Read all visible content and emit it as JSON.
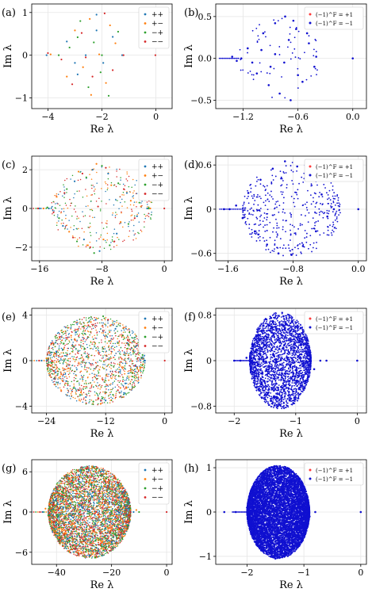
{
  "panels": [
    {
      "id": "a",
      "label": "(a)",
      "xlabel": "Re λ",
      "ylabel": "Im λ",
      "xlim": [
        -4.6,
        0.6
      ],
      "ylim": [
        -1.25,
        1.2
      ],
      "xticks": [
        -4,
        -2,
        0
      ],
      "xtick_labels": [
        "−4",
        "−2",
        "0"
      ],
      "yticks": [
        -1,
        0,
        1
      ],
      "ytick_labels": [
        "−1",
        "0",
        "1"
      ],
      "legend": {
        "type": "sign2",
        "entries": [
          "++",
          "+−",
          "−+",
          "−−"
        ]
      }
    },
    {
      "id": "b",
      "label": "(b)",
      "xlabel": "Re λ",
      "ylabel": "Im λ",
      "xlim": [
        -1.5,
        0.15
      ],
      "ylim": [
        -0.6,
        0.65
      ],
      "xticks": [
        -1.2,
        -0.6,
        0.0
      ],
      "xtick_labels": [
        "−1.2",
        "−0.6",
        "0.0"
      ],
      "yticks": [
        -0.5,
        0,
        0.5
      ],
      "ytick_labels": [
        "−0.5",
        "0.0",
        "0.5"
      ],
      "legend": {
        "type": "parity",
        "entries": [
          "(−1)^F = +1",
          "(−1)^F = −1"
        ]
      }
    },
    {
      "id": "c",
      "label": "(c)",
      "xlabel": "Re λ",
      "ylabel": "Im λ",
      "xlim": [
        -17,
        1
      ],
      "ylim": [
        -2.7,
        2.7
      ],
      "xticks": [
        -16,
        -8,
        0
      ],
      "xtick_labels": [
        "−16",
        "−8",
        "0"
      ],
      "yticks": [
        -2,
        0,
        2
      ],
      "ytick_labels": [
        "−2",
        "0",
        "2"
      ],
      "legend": {
        "type": "sign2",
        "entries": [
          "++",
          "+−",
          "−+",
          "−−"
        ]
      }
    },
    {
      "id": "d",
      "label": "(d)",
      "xlabel": "Re λ",
      "ylabel": "Im λ",
      "xlim": [
        -1.75,
        0.1
      ],
      "ylim": [
        -0.7,
        0.72
      ],
      "xticks": [
        -1.6,
        -0.8,
        0.0
      ],
      "xtick_labels": [
        "−1.6",
        "−0.8",
        "0.0"
      ],
      "yticks": [
        -0.6,
        0,
        0.6
      ],
      "ytick_labels": [
        "−0.6",
        "0",
        "0.6"
      ],
      "legend": {
        "type": "parity",
        "entries": [
          "(−1)^F = +1",
          "(−1)^F = −1"
        ]
      }
    },
    {
      "id": "e",
      "label": "(e)",
      "xlabel": "Re λ",
      "ylabel": "Im λ",
      "xlim": [
        -27,
        1.5
      ],
      "ylim": [
        -4.6,
        4.6
      ],
      "xticks": [
        -24,
        -12,
        0
      ],
      "xtick_labels": [
        "−24",
        "−12",
        "0"
      ],
      "yticks": [
        -4,
        0,
        4
      ],
      "ytick_labels": [
        "−4",
        "0",
        "4"
      ],
      "legend": {
        "type": "sign2",
        "entries": [
          "++",
          "+−",
          "−+",
          "−−"
        ]
      }
    },
    {
      "id": "f",
      "label": "(f)",
      "xlabel": "Re λ",
      "ylabel": "Im λ",
      "xlim": [
        -2.3,
        0.15
      ],
      "ylim": [
        -0.92,
        0.92
      ],
      "xticks": [
        -2,
        -1,
        0
      ],
      "xtick_labels": [
        "−2",
        "−1",
        "0"
      ],
      "yticks": [
        -0.8,
        0,
        0.8
      ],
      "ytick_labels": [
        "−0.8",
        "0",
        "0.8"
      ],
      "legend": {
        "type": "parity",
        "entries": [
          "(−1)^F = +1",
          "(−1)^F = −1"
        ]
      }
    },
    {
      "id": "g",
      "label": "(g)",
      "xlabel": "Re λ",
      "ylabel": "Im λ",
      "xlim": [
        -49,
        2
      ],
      "ylim": [
        -7.8,
        7.8
      ],
      "xticks": [
        -40,
        -20,
        0
      ],
      "xtick_labels": [
        "−40",
        "−20",
        "0"
      ],
      "yticks": [
        -6,
        0,
        6
      ],
      "ytick_labels": [
        "−6",
        "0",
        "6"
      ],
      "legend": {
        "type": "sign2",
        "entries": [
          "++",
          "+−",
          "−+",
          "−−"
        ]
      }
    },
    {
      "id": "h",
      "label": "(h)",
      "xlabel": "Re λ",
      "ylabel": "Im λ",
      "xlim": [
        -2.55,
        0.1
      ],
      "ylim": [
        -1.18,
        1.18
      ],
      "xticks": [
        -2,
        -1,
        0
      ],
      "xtick_labels": [
        "−2",
        "−1",
        "0"
      ],
      "yticks": [
        -1,
        0,
        1
      ],
      "ytick_labels": [
        "−1",
        "0",
        "1"
      ],
      "legend": {
        "type": "parity",
        "entries": [
          "(−1)^F = +1",
          "(−1)^F = −1"
        ]
      }
    }
  ],
  "chart_data": [
    {
      "type": "scatter",
      "panel": "a",
      "series": [
        {
          "name": "++",
          "color": "#1f77b4",
          "x": [
            -4.05,
            -3.3,
            -2.9,
            -2.6,
            -2.2,
            -1.95,
            -1.6,
            -1.25,
            -3.0,
            -2.2
          ],
          "y": [
            0.0,
            0.32,
            -0.45,
            0.0,
            0.58,
            -0.18,
            0.43,
            0.0,
            -0.18,
            0.95
          ]
        },
        {
          "name": "+−",
          "color": "#ff7f0e",
          "x": [
            -3.9,
            -3.0,
            -2.7,
            -2.45,
            -2.1,
            -1.85,
            -1.5,
            -3.3,
            -2.4,
            -1.7
          ],
          "y": [
            0.02,
            0.58,
            -0.28,
            0.85,
            0.02,
            -0.65,
            0.28,
            -0.5,
            -0.93,
            0.7
          ],
          "count": 10
        },
        {
          "name": "−+",
          "color": "#2ca02c",
          "x": [
            -3.6,
            -3.2,
            -2.8,
            -2.5,
            -2.3,
            -2.0,
            -1.75,
            -1.4,
            -2.9,
            -2.05
          ],
          "y": [
            0.0,
            0.18,
            0.8,
            -0.75,
            0.3,
            0.0,
            -0.95,
            0.55,
            0.42,
            -0.4
          ]
        },
        {
          "name": "−−",
          "color": "#d62728",
          "x": [
            -4.0,
            -3.5,
            -3.1,
            -2.75,
            -2.35,
            -1.9,
            -1.6,
            -1.2,
            -0.02,
            -2.6
          ],
          "y": [
            0.05,
            -0.1,
            -0.68,
            0.52,
            -0.5,
            0.98,
            -0.35,
            0.0,
            0.0,
            -0.05
          ]
        }
      ]
    },
    {
      "type": "scatter",
      "panel": "b",
      "series": [
        {
          "name": "(−1)^F = +1",
          "color": "#ff3b3b",
          "x": [],
          "y": []
        },
        {
          "name": "(−1)^F = −1",
          "color": "#1010d0",
          "x": [
            -1.32,
            -1.27,
            -1.22,
            -1.15,
            -1.05,
            -0.98,
            -0.92,
            -0.85,
            -0.8,
            -0.74,
            -0.68,
            -0.62,
            -0.55,
            -0.48,
            -0.42,
            0.0,
            -1.0,
            -0.9,
            -0.7,
            -0.6,
            -0.5,
            -0.75,
            -0.85,
            -1.1,
            -0.65,
            -0.4
          ],
          "y": [
            0.02,
            -0.03,
            0.0,
            0.12,
            -0.18,
            0.3,
            -0.32,
            0.42,
            -0.42,
            0.5,
            -0.5,
            0.35,
            -0.28,
            0.18,
            -0.1,
            0.0,
            0.1,
            -0.1,
            0.22,
            -0.2,
            0.3,
            -0.05,
            0.05,
            -0.05,
            0.45,
            0.02
          ]
        }
      ]
    },
    {
      "type": "scatter",
      "panel": "c",
      "series": [
        {
          "name": "++",
          "color": "#1f77b4",
          "x": [
            -16.0,
            -14.8,
            -13,
            -11.5,
            -10.3,
            -9.2,
            -8.3,
            -7.2,
            -6.1,
            -4.8,
            -3.5,
            -2.2
          ],
          "y": [
            0.0,
            0.0,
            -0.9,
            1.4,
            -1.6,
            2.0,
            -2.2,
            1.8,
            -1.3,
            0.8,
            -0.4,
            0.0
          ]
        },
        {
          "name": "+−",
          "color": "#ff7f0e",
          "x": [
            -15.5,
            -13.8,
            -12.2,
            -11,
            -9.8,
            -8.7,
            -7.8,
            -6.8,
            -5.6,
            -4.3,
            -3.0,
            -1.8
          ],
          "y": [
            0.0,
            0.6,
            -1.2,
            1.9,
            -1.9,
            2.3,
            -1.6,
            1.2,
            -0.7,
            0.4,
            0.1,
            0.0
          ]
        },
        {
          "name": "−+",
          "color": "#2ca02c",
          "x": [
            -15.0,
            -13.5,
            -12.5,
            -11.2,
            -10,
            -9,
            -8,
            -7,
            -5.9,
            -4.6,
            -3.2,
            -2.0
          ],
          "y": [
            0.05,
            -0.5,
            1.0,
            -1.7,
            1.6,
            -2.3,
            2.2,
            -1.9,
            1.3,
            -0.8,
            0.3,
            0.0
          ]
        },
        {
          "name": "−−",
          "color": "#d62728",
          "x": [
            -16.2,
            -14.2,
            -12.8,
            -11.7,
            -10.5,
            -9.5,
            -8.5,
            -7.5,
            -6.4,
            -5.2,
            -3.8,
            0.0
          ],
          "y": [
            0.0,
            -0.2,
            0.8,
            -1.5,
            1.8,
            -2.0,
            0.1,
            2.1,
            -1.7,
            1.0,
            -0.5,
            0.0
          ]
        }
      ]
    },
    {
      "type": "scatter",
      "panel": "d",
      "series": [
        {
          "name": "(−1)^F = +1",
          "color": "#ff3b3b",
          "x": [],
          "y": []
        },
        {
          "name": "(−1)^F = −1",
          "color": "#1010d0",
          "x": [
            -1.65,
            -1.58,
            -1.5,
            -1.42,
            -1.35,
            -1.27,
            -1.2,
            -1.12,
            -1.05,
            -0.98,
            -0.9,
            -0.82,
            -0.75,
            -0.68,
            -0.6,
            -0.52,
            -0.45,
            -0.38,
            -0.3,
            0.0
          ],
          "y": [
            0.0,
            0.0,
            0.05,
            -0.12,
            0.22,
            -0.3,
            0.4,
            -0.48,
            0.55,
            -0.6,
            0.65,
            -0.62,
            0.58,
            -0.5,
            0.4,
            -0.3,
            0.2,
            -0.1,
            0.0,
            0.0
          ]
        }
      ]
    },
    {
      "type": "scatter",
      "panel": "e",
      "series": [
        {
          "name": "++",
          "color": "#1f77b4",
          "x": [
            -25,
            -22,
            -20,
            -18,
            -16,
            -14,
            -12,
            -10,
            -8,
            -6,
            -4
          ],
          "y": [
            0,
            0.8,
            -1.8,
            2.5,
            -3.2,
            3.6,
            -3.5,
            2.8,
            -2.0,
            1.2,
            0
          ]
        },
        {
          "name": "+−",
          "color": "#ff7f0e",
          "x": [
            -24,
            -21,
            -19,
            -17,
            -15,
            -13,
            -11,
            -9,
            -7,
            -5
          ],
          "y": [
            0.2,
            -1.2,
            2.2,
            -2.8,
            3.4,
            -3.8,
            3.1,
            -2.4,
            1.6,
            -0.6
          ]
        },
        {
          "name": "−+",
          "color": "#2ca02c",
          "x": [
            -23,
            -20.5,
            -18.5,
            -16.5,
            -14.5,
            -12.5,
            -10.5,
            -8.5,
            -6.5,
            -4.5
          ],
          "y": [
            -0.2,
            1.5,
            -2.4,
            3.0,
            -3.6,
            3.9,
            -3.0,
            2.2,
            -1.4,
            0.5
          ]
        },
        {
          "name": "−−",
          "color": "#d62728",
          "x": [
            -25.5,
            -22.5,
            -20,
            -17.5,
            -15.5,
            -13.5,
            -11.5,
            -9.5,
            -7.5,
            0
          ],
          "y": [
            0.0,
            -0.9,
            2.0,
            -2.6,
            3.1,
            -3.3,
            3.6,
            -2.6,
            1.8,
            0
          ]
        }
      ]
    },
    {
      "type": "scatter",
      "panel": "f",
      "series": [
        {
          "name": "(−1)^F = +1",
          "color": "#ff3b3b",
          "x": [],
          "y": []
        },
        {
          "name": "(−1)^F = −1",
          "color": "#1010d0",
          "x": [
            -2.0,
            -1.9,
            -1.8,
            -1.7,
            -1.6,
            -1.5,
            -1.4,
            -1.3,
            -1.2,
            -1.1,
            -1.0,
            -0.9,
            -0.8,
            -0.7,
            -0.6,
            -0.5,
            0.0
          ],
          "y": [
            0.0,
            0.0,
            0.05,
            -0.2,
            0.4,
            -0.6,
            0.75,
            -0.8,
            0.78,
            -0.7,
            0.6,
            -0.45,
            0.3,
            -0.15,
            0.0,
            0.0,
            0.0
          ]
        }
      ]
    },
    {
      "type": "scatter",
      "panel": "g",
      "series": [
        {
          "name": "++",
          "color": "#1f77b4",
          "x": [
            -45,
            -40,
            -36,
            -32,
            -28,
            -24,
            -20,
            -16,
            -12
          ],
          "y": [
            0,
            2,
            -4,
            5.5,
            -6.5,
            6.0,
            -4.5,
            3,
            0
          ]
        },
        {
          "name": "+−",
          "color": "#ff7f0e",
          "x": [
            -44,
            -39,
            -35,
            -31,
            -27,
            -23,
            -19,
            -15,
            -11
          ],
          "y": [
            0.5,
            -2.5,
            4.5,
            -6,
            6.8,
            -5.5,
            4,
            -2,
            0.3
          ]
        },
        {
          "name": "−+",
          "color": "#2ca02c",
          "x": [
            -43,
            -38,
            -34,
            -30,
            -26,
            -22,
            -18,
            -14,
            -10
          ],
          "y": [
            -0.5,
            3,
            -5,
            6.2,
            -6.8,
            5,
            -3.5,
            1.5,
            0
          ]
        },
        {
          "name": "−−",
          "color": "#d62728",
          "x": [
            -46,
            -41,
            -37,
            -33,
            -29,
            -25,
            -21,
            -17,
            0
          ],
          "y": [
            0,
            -1.5,
            3.5,
            -5.5,
            6.5,
            -6.2,
            4.8,
            -2.5,
            0
          ]
        }
      ]
    },
    {
      "type": "scatter",
      "panel": "h",
      "series": [
        {
          "name": "(−1)^F = +1",
          "color": "#ff3b3b",
          "x": [],
          "y": []
        },
        {
          "name": "(−1)^F = −1",
          "color": "#1010d0",
          "x": [
            -2.4,
            -2.2,
            -2.0,
            -1.9,
            -1.8,
            -1.7,
            -1.6,
            -1.5,
            -1.4,
            -1.3,
            -1.2,
            -1.1,
            -1.0,
            -0.9,
            -0.8,
            0.0
          ],
          "y": [
            0,
            0,
            0.1,
            -0.3,
            0.6,
            -0.85,
            1.0,
            -1.05,
            0.95,
            -0.85,
            0.7,
            -0.5,
            0.3,
            -0.1,
            0,
            0
          ]
        }
      ]
    }
  ]
}
